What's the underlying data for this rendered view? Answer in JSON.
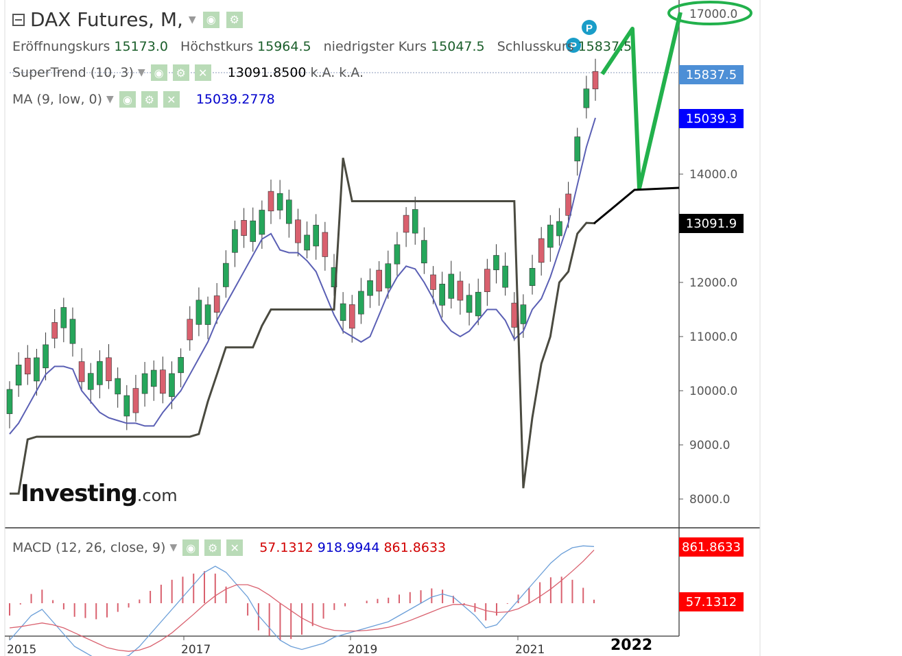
{
  "header": {
    "title": "DAX Futures, M,",
    "ohlc": [
      {
        "label": "Eröffnungskurs",
        "value": "15173.0"
      },
      {
        "label": "Höchstkurs",
        "value": "15964.5"
      },
      {
        "label": "niedrigster Kurs",
        "value": "15047.5"
      },
      {
        "label": "Schlusskurs",
        "value": "15837.5"
      }
    ]
  },
  "indicators": {
    "supertrend": {
      "label": "SuperTrend (10, 3)",
      "value": "13091.8500",
      "extra1": "k.A.",
      "extra2": "k.A."
    },
    "ma": {
      "label": "MA (9, low, 0)",
      "value": "15039.2778"
    },
    "macd": {
      "label": "MACD (12, 26, close, 9)",
      "hist": "57.1312",
      "macd": "918.9944",
      "signal": "861.8633"
    }
  },
  "price_tags": {
    "last": "15837.5",
    "ma": "15039.3",
    "supertrend": "13091.9",
    "macd_signal": "861.8633",
    "macd_hist": "57.1312"
  },
  "annotations": {
    "target_label": "17000.0",
    "year_label": "2022"
  },
  "logo": {
    "main": "Investing",
    "suffix": ".com"
  },
  "colors": {
    "up": "#26a65b",
    "down": "#d9606e",
    "ma": "#5a5fb4",
    "supertrend": "#4a4a40",
    "macd_line": "#6a9ed8",
    "signal_line": "#d9606e",
    "drawing": "#22b14c",
    "last_tag": "#4d8fd6",
    "ma_tag": "#0000ff",
    "st_tag": "#000000",
    "macd_tag": "#ff0000"
  },
  "chart_data": {
    "type": "candlestick",
    "interval": "monthly",
    "y_axis_ticks": [
      8000,
      9000,
      10000,
      11000,
      12000,
      14000
    ],
    "ylim": [
      7500,
      17200
    ],
    "x_axis_labels": [
      "2015",
      "2017",
      "2019",
      "2021"
    ],
    "ma_series": [
      9200,
      9400,
      9700,
      10000,
      10300,
      10450,
      10450,
      10400,
      10000,
      9800,
      9600,
      9500,
      9450,
      9400,
      9400,
      9350,
      9350,
      9600,
      9800,
      10000,
      10300,
      10600,
      10900,
      11300,
      11600,
      11900,
      12200,
      12500,
      12800,
      12900,
      12600,
      12550,
      12550,
      12400,
      12200,
      11800,
      11400,
      11100,
      11000,
      10900,
      11000,
      11400,
      11800,
      12100,
      12300,
      12250,
      12000,
      11700,
      11300,
      11100,
      11000,
      11100,
      11300,
      11500,
      11500,
      11300,
      10950,
      11100,
      11500,
      11700,
      12100,
      12600,
      13100,
      13800,
      14500,
      15039
    ],
    "supertrend_series": [
      8100,
      8100,
      9100,
      9150,
      9150,
      9150,
      9150,
      9150,
      9150,
      9150,
      9150,
      9150,
      9150,
      9150,
      9150,
      9150,
      9150,
      9150,
      9150,
      9150,
      9150,
      9200,
      9800,
      10300,
      10800,
      10800,
      10800,
      10800,
      11200,
      11500,
      11500,
      11500,
      11500,
      11500,
      11500,
      11500,
      11500,
      14300,
      13500,
      13500,
      13500,
      13500,
      13500,
      13500,
      13500,
      13500,
      13500,
      13500,
      13500,
      13500,
      13500,
      13500,
      13500,
      13500,
      13500,
      13500,
      13500,
      8200,
      9500,
      10500,
      11000,
      12000,
      12200,
      12900,
      13100,
      13091.9
    ],
    "macd_series": [
      -600,
      -400,
      -200,
      -100,
      -300,
      -500,
      -700,
      -800,
      -900,
      -950,
      -900,
      -850,
      -700,
      -500,
      -300,
      -100,
      100,
      300,
      500,
      600,
      500,
      300,
      100,
      -200,
      -400,
      -600,
      -700,
      -750,
      -700,
      -650,
      -550,
      -500,
      -450,
      -400,
      -350,
      -300,
      -200,
      -100,
      0,
      100,
      150,
      100,
      -50,
      -200,
      -400,
      -350,
      -150,
      50,
      250,
      450,
      650,
      800,
      900,
      930,
      918.9944
    ],
    "signal_series": [
      -400,
      -380,
      -350,
      -320,
      -350,
      -400,
      -480,
      -560,
      -640,
      -720,
      -760,
      -780,
      -760,
      -700,
      -600,
      -480,
      -330,
      -180,
      -20,
      120,
      230,
      300,
      300,
      240,
      130,
      0,
      -120,
      -240,
      -330,
      -400,
      -440,
      -450,
      -450,
      -440,
      -420,
      -390,
      -340,
      -280,
      -210,
      -140,
      -70,
      -20,
      -20,
      -60,
      -120,
      -150,
      -140,
      -90,
      0,
      110,
      230,
      370,
      520,
      680,
      861.8633
    ],
    "hist_series": [
      -200,
      -20,
      150,
      220,
      50,
      -100,
      -220,
      -240,
      -260,
      -230,
      -140,
      -70,
      60,
      200,
      300,
      380,
      430,
      480,
      520,
      480,
      270,
      0,
      -200,
      -440,
      -530,
      -600,
      -580,
      -510,
      -370,
      -250,
      -110,
      -50,
      0,
      40,
      70,
      90,
      140,
      180,
      210,
      240,
      220,
      120,
      -30,
      -140,
      -280,
      -200,
      -10,
      140,
      250,
      340,
      420,
      430,
      380,
      250,
      57.1312
    ]
  }
}
